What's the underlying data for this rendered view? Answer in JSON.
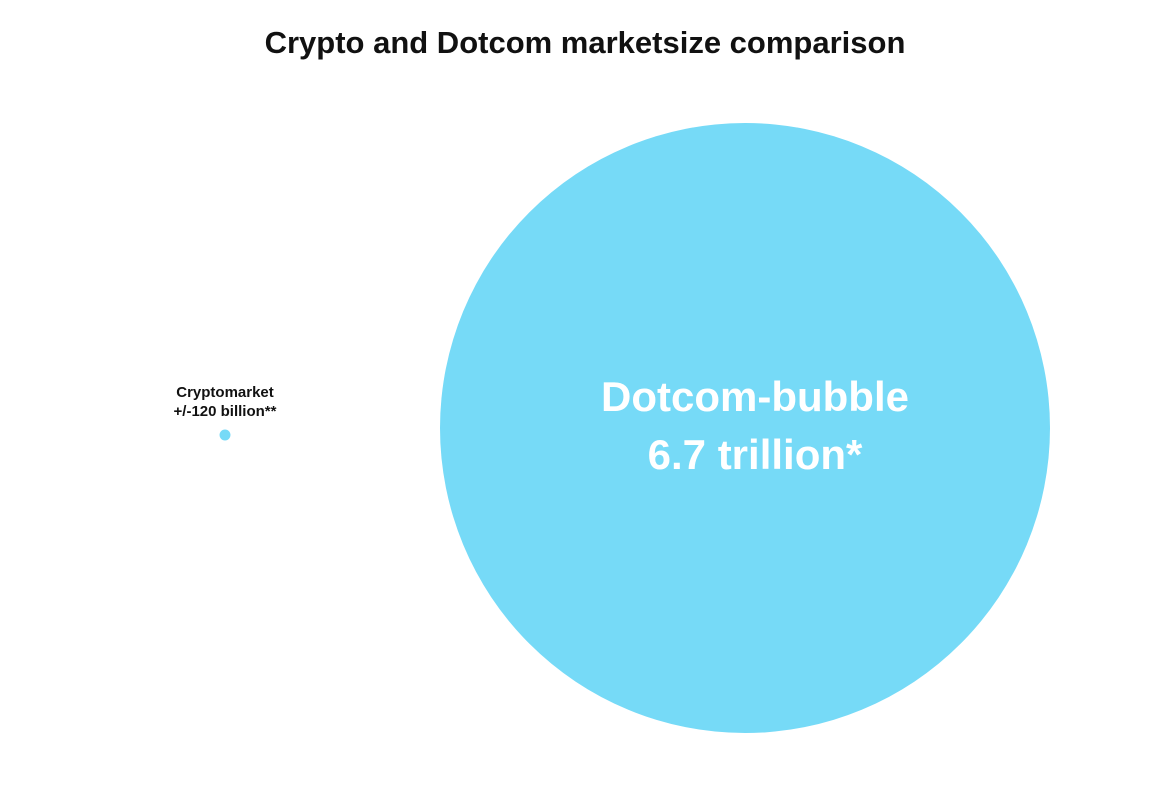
{
  "chart_data": {
    "type": "bubble",
    "title": "Crypto and Dotcom marketsize comparison",
    "categories": [
      "Cryptomarket",
      "Dotcom-bubble"
    ],
    "values": [
      120,
      6700
    ],
    "value_labels": [
      "+/-120 billion**",
      "6.7 trillion*"
    ],
    "color": "#76daf7"
  }
}
